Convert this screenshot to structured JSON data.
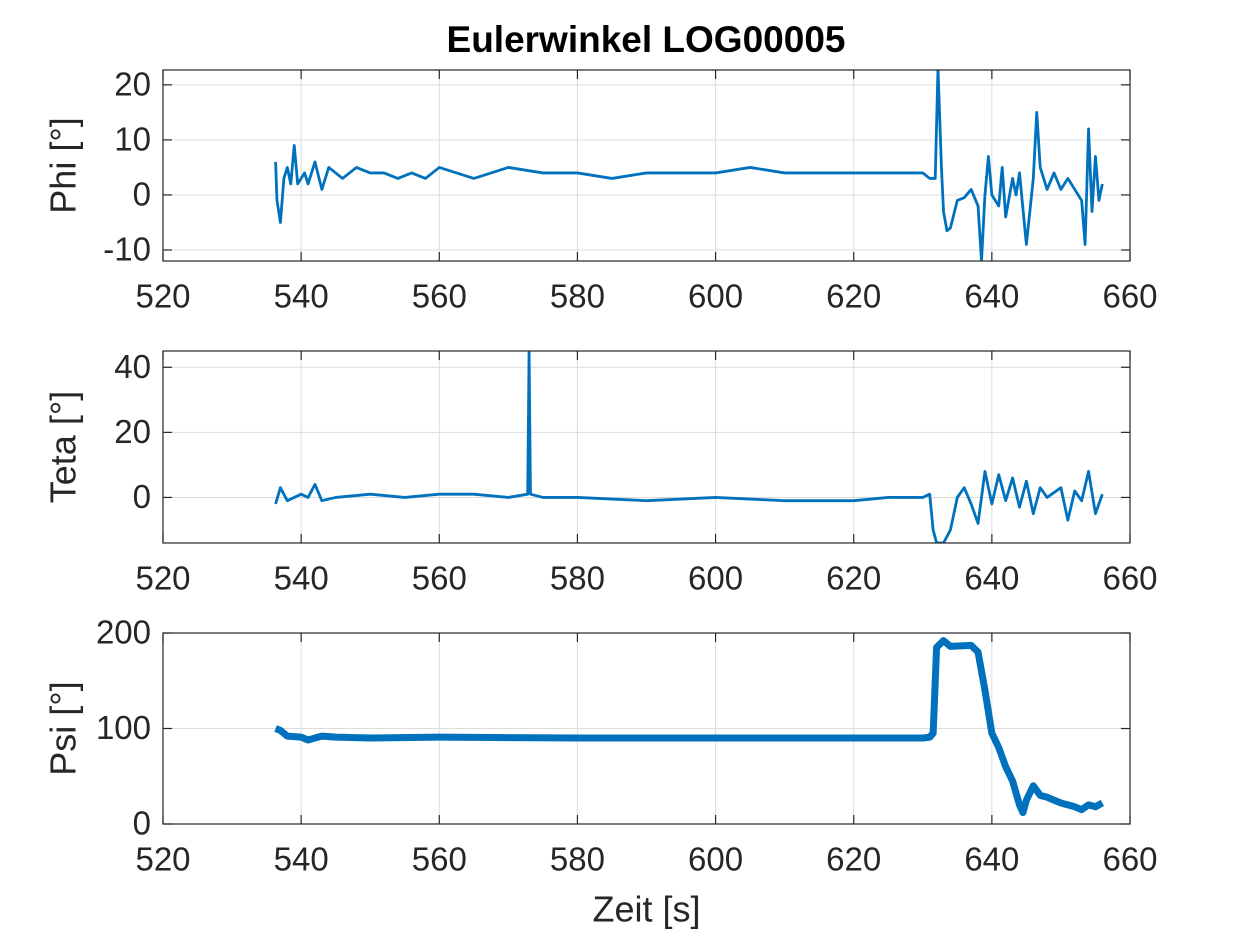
{
  "chart_data": [
    {
      "type": "line",
      "title": "Eulerwinkel LOG00005",
      "ylabel": "Phi [°]",
      "color": "#0072bd",
      "grid": true,
      "xlim": [
        520,
        660
      ],
      "xticks": [
        520,
        540,
        560,
        580,
        600,
        620,
        640,
        660
      ],
      "ylim": [
        -12,
        22.7
      ],
      "yticks": [
        -10,
        0,
        10,
        20
      ],
      "x": [
        536.3,
        536.5,
        537,
        537.5,
        538,
        538.5,
        539,
        539.5,
        540.5,
        541,
        542,
        543,
        544,
        545,
        546,
        548,
        550,
        552,
        554,
        556,
        558,
        560,
        565,
        570,
        575,
        580,
        585,
        590,
        595,
        600,
        605,
        610,
        615,
        620,
        625,
        630,
        631,
        631.8,
        632.2,
        632.7,
        633,
        633.5,
        634,
        635,
        636,
        637,
        638,
        638.5,
        639,
        639.5,
        640,
        641,
        641.5,
        642,
        643,
        643.5,
        644,
        645,
        646,
        646.5,
        647,
        648,
        649,
        650,
        651,
        652,
        653,
        653.5,
        654,
        654.5,
        655,
        655.5,
        656
      ],
      "values": [
        6,
        -1,
        -5,
        3,
        5,
        2,
        9,
        2,
        4,
        2,
        6,
        1,
        5,
        4,
        3,
        5,
        4,
        4,
        3,
        4,
        3,
        5,
        3,
        5,
        4,
        4,
        3,
        4,
        4,
        4,
        5,
        4,
        4,
        4,
        4,
        4,
        3,
        3,
        23,
        5,
        -3,
        -6.5,
        -6,
        -1,
        -0.5,
        1,
        -2,
        -12,
        0,
        7,
        0,
        -2,
        5,
        -4,
        3,
        0,
        4,
        -9,
        3,
        15,
        5,
        1,
        4,
        1,
        3,
        1,
        -1,
        -9,
        12,
        -3,
        7,
        -1,
        2
      ]
    },
    {
      "type": "line",
      "ylabel": "Teta [°]",
      "color": "#0072bd",
      "grid": true,
      "xlim": [
        520,
        660
      ],
      "xticks": [
        520,
        540,
        560,
        580,
        600,
        620,
        640,
        660
      ],
      "ylim": [
        -14,
        45
      ],
      "yticks": [
        0,
        20,
        40
      ],
      "x": [
        536.3,
        537,
        538,
        540,
        541,
        542,
        543,
        545,
        550,
        555,
        560,
        565,
        570,
        572.8,
        573,
        573.2,
        575,
        580,
        590,
        600,
        610,
        620,
        625,
        630,
        631,
        631.5,
        632,
        633,
        634,
        635,
        636,
        637,
        638,
        639,
        640,
        641,
        642,
        643,
        644,
        645,
        646,
        647,
        648,
        650,
        651,
        652,
        653,
        654,
        655,
        656
      ],
      "values": [
        -2,
        3,
        -1,
        1,
        0,
        4,
        -1,
        0,
        1,
        0,
        1,
        1,
        0,
        1,
        45,
        1,
        0,
        0,
        -1,
        0,
        -1,
        -1,
        0,
        0,
        1,
        -10,
        -14,
        -14,
        -10,
        0,
        3,
        -2,
        -8,
        8,
        -2,
        7,
        -1,
        6,
        -3,
        5,
        -5,
        3,
        0,
        3,
        -7,
        2,
        -1,
        8,
        -5,
        1
      ]
    },
    {
      "type": "line",
      "ylabel": "Psi [°]",
      "xlabel": "Zeit [s]",
      "color": "#0072bd",
      "grid": true,
      "xlim": [
        520,
        660
      ],
      "xticks": [
        520,
        540,
        560,
        580,
        600,
        620,
        640,
        660
      ],
      "ylim": [
        0,
        200
      ],
      "yticks": [
        0,
        100,
        200
      ],
      "x": [
        536.3,
        537,
        538,
        540,
        541,
        542,
        543,
        545,
        550,
        560,
        580,
        600,
        620,
        630,
        631,
        631.5,
        632,
        633,
        634,
        637,
        638,
        639,
        640,
        641,
        642,
        643,
        644,
        644.5,
        645,
        646,
        647,
        648,
        650,
        652,
        653,
        654,
        655,
        656
      ],
      "values": [
        100,
        98,
        92,
        91,
        88,
        90,
        92,
        91,
        90,
        91,
        90,
        90,
        90,
        90,
        91,
        95,
        185,
        192,
        186,
        187,
        180,
        140,
        95,
        80,
        60,
        45,
        20,
        12,
        25,
        40,
        30,
        28,
        22,
        18,
        15,
        20,
        18,
        22
      ]
    }
  ]
}
